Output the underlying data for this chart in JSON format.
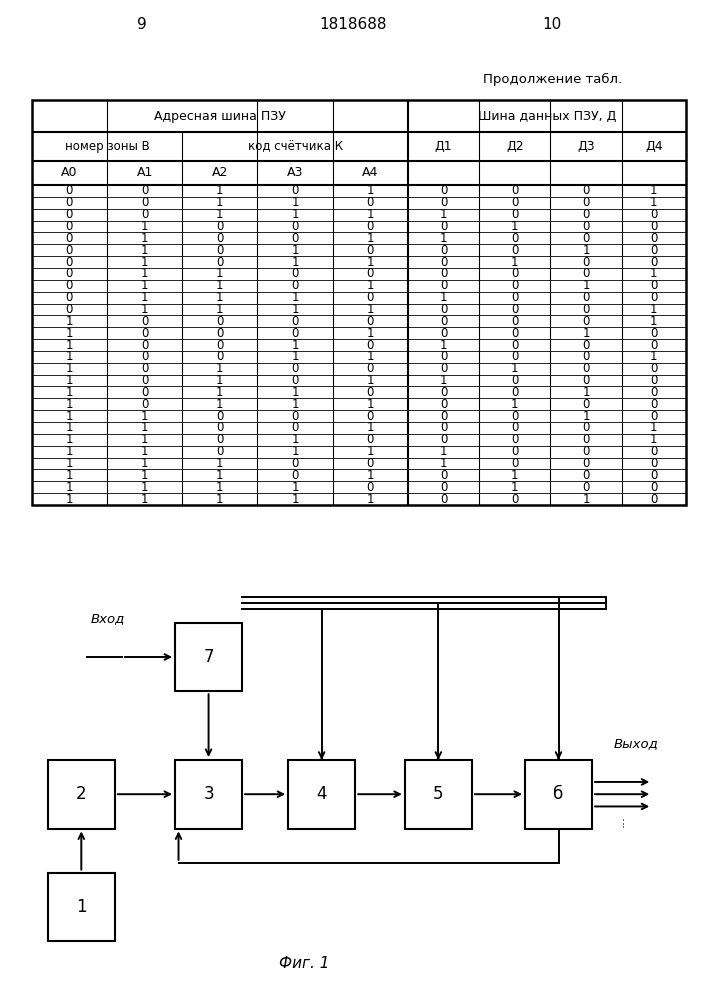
{
  "page_numbers": [
    "9",
    "1818688",
    "10"
  ],
  "subtitle": "Продолжение табл.",
  "table_header_row1_left": "Адресная шина ПЗУ",
  "table_header_row1_right": "Шина данных ПЗУ, Д",
  "table_header_row2_left": "номер зоны В",
  "table_header_row2_mid": "код счётчика К",
  "table_header_row2_right": [
    "Д1",
    "Д2",
    "Д3",
    "Д4"
  ],
  "table_header_row3": [
    "А0",
    "А1",
    "А2",
    "А3",
    "А4",
    "Д1",
    "Д2",
    "Д3",
    "Д4"
  ],
  "table_data": [
    [
      0,
      0,
      1,
      0,
      1,
      0,
      0,
      0,
      1
    ],
    [
      0,
      0,
      1,
      1,
      0,
      0,
      0,
      0,
      1
    ],
    [
      0,
      0,
      1,
      1,
      1,
      1,
      0,
      0,
      0
    ],
    [
      0,
      1,
      0,
      0,
      0,
      0,
      1,
      0,
      0
    ],
    [
      0,
      1,
      0,
      0,
      1,
      1,
      0,
      0,
      0
    ],
    [
      0,
      1,
      0,
      1,
      0,
      0,
      0,
      1,
      0
    ],
    [
      0,
      1,
      0,
      1,
      1,
      0,
      1,
      0,
      0
    ],
    [
      0,
      1,
      1,
      0,
      0,
      0,
      0,
      0,
      1
    ],
    [
      0,
      1,
      1,
      0,
      1,
      0,
      0,
      1,
      0
    ],
    [
      0,
      1,
      1,
      1,
      0,
      1,
      0,
      0,
      0
    ],
    [
      0,
      1,
      1,
      1,
      1,
      0,
      0,
      0,
      1
    ],
    [
      1,
      0,
      0,
      0,
      0,
      0,
      0,
      0,
      1
    ],
    [
      1,
      0,
      0,
      0,
      1,
      0,
      0,
      1,
      0
    ],
    [
      1,
      0,
      0,
      1,
      0,
      1,
      0,
      0,
      0
    ],
    [
      1,
      0,
      0,
      1,
      1,
      0,
      0,
      0,
      1
    ],
    [
      1,
      0,
      1,
      0,
      0,
      0,
      1,
      0,
      0
    ],
    [
      1,
      0,
      1,
      0,
      1,
      1,
      0,
      0,
      0
    ],
    [
      1,
      0,
      1,
      1,
      0,
      0,
      0,
      1,
      0
    ],
    [
      1,
      0,
      1,
      1,
      1,
      0,
      1,
      0,
      0
    ],
    [
      1,
      1,
      0,
      0,
      0,
      0,
      0,
      1,
      0
    ],
    [
      1,
      1,
      0,
      0,
      1,
      0,
      0,
      0,
      1
    ],
    [
      1,
      1,
      0,
      1,
      0,
      0,
      0,
      0,
      1
    ],
    [
      1,
      1,
      0,
      1,
      1,
      1,
      0,
      0,
      0
    ],
    [
      1,
      1,
      1,
      0,
      0,
      1,
      0,
      0,
      0
    ],
    [
      1,
      1,
      1,
      0,
      1,
      0,
      1,
      0,
      0
    ],
    [
      1,
      1,
      1,
      1,
      0,
      0,
      1,
      0,
      0
    ],
    [
      1,
      1,
      1,
      1,
      1,
      0,
      0,
      1,
      0
    ]
  ],
  "fig_label": "Фиг. 1",
  "block_ids": [
    "1",
    "2",
    "3",
    "4",
    "5",
    "б",
    "7"
  ],
  "background_color": "#ffffff"
}
